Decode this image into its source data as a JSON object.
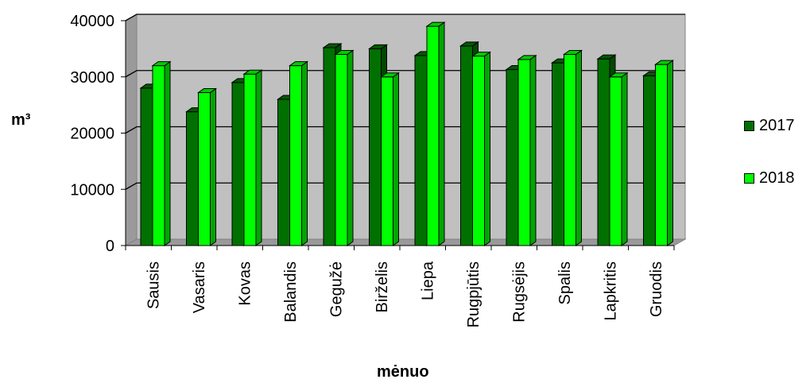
{
  "chart_data": {
    "type": "bar",
    "categories": [
      "Sausis",
      "Vasaris",
      "Kovas",
      "Balandis",
      "Gegužė",
      "Birželis",
      "Liepa",
      "Rugpjūtis",
      "Rugsėjis",
      "Spalis",
      "Lapkritis",
      "Gruodis"
    ],
    "series": [
      {
        "name": "2017",
        "color": "#007000",
        "values": [
          28000,
          23800,
          29000,
          26000,
          35200,
          35000,
          33800,
          35500,
          31300,
          32500,
          33200,
          30200
        ]
      },
      {
        "name": "2018",
        "color": "#00ff00",
        "values": [
          32000,
          27200,
          30500,
          32000,
          34000,
          30000,
          39000,
          33700,
          33100,
          34000,
          30000,
          32200
        ]
      }
    ],
    "title": "",
    "xlabel": "mėnuo",
    "ylabel": "m³",
    "ylim": [
      0,
      40000
    ],
    "yticks": [
      0,
      10000,
      20000,
      30000,
      40000
    ],
    "grid": true,
    "legend": "right"
  }
}
